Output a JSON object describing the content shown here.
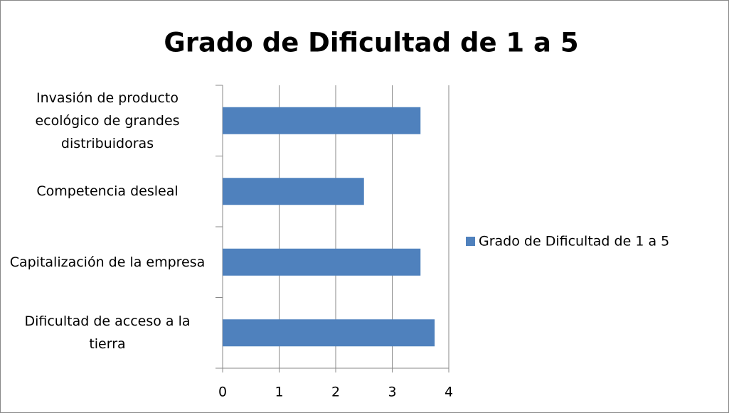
{
  "chart_data": {
    "type": "bar",
    "orientation": "horizontal",
    "title": "Grado de Dificultad de 1 a 5",
    "categories": [
      "Invasión de producto ecológico de grandes distribuidoras",
      "Competencia desleal",
      "Capitalización de la empresa",
      "Dificultad de acceso a la tierra"
    ],
    "series": [
      {
        "name": "Grado de Dificultad de 1 a 5",
        "color": "#4f81bd",
        "values": [
          3.5,
          2.5,
          3.5,
          3.75
        ]
      }
    ],
    "xlim": [
      0,
      4
    ],
    "xticks": [
      0,
      1,
      2,
      3,
      4
    ],
    "grid": true,
    "legend": "right"
  }
}
